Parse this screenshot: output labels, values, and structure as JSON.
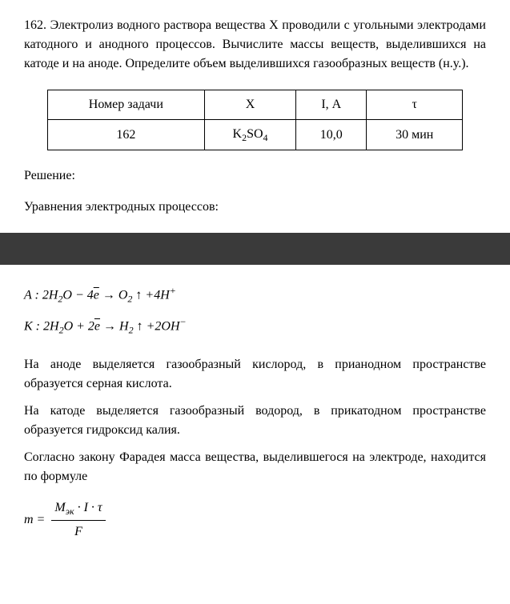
{
  "problem": {
    "number": "162.",
    "text": "Электролиз водного раствора вещества Х проводили с угольными электродами катодного и анодного процессов. Вычислите массы веществ, выделившихся на катоде и на аноде. Определите объем выделившихся газообразных веществ (н.у.)."
  },
  "table": {
    "headers": [
      "Номер задачи",
      "X",
      "I, А",
      "τ"
    ],
    "row": [
      "162",
      "K₂SO₄",
      "10,0",
      "30 мин"
    ]
  },
  "sections": {
    "solution_label": "Решение:",
    "equations_label": "Уравнения электродных процессов:"
  },
  "formulas": {
    "anode": {
      "prefix": "A : 2",
      "h2o": "H",
      "sub1": "2",
      "o": "O",
      "minus": " − 4",
      "e": "e",
      "arrow": " → ",
      "o2": "O",
      "sub2": "2",
      "up": " ↑ +4",
      "h": "H",
      "plus": "+"
    },
    "cathode": {
      "prefix": "K : 2",
      "h2o": "H",
      "sub1": "2",
      "o": "O",
      "plus": " + 2",
      "e": "e",
      "arrow": " → ",
      "h2": "H",
      "sub2": "2",
      "up": " ↑ +2",
      "oh": "OH",
      "minus": "−"
    },
    "mass": {
      "lhs": "m =",
      "numerator_parts": {
        "m": "M",
        "sub": "эк",
        "rest": " · I · τ"
      },
      "denominator": "F"
    }
  },
  "paragraphs": {
    "p1": "На аноде выделяется газообразный кислород, в прианодном пространстве образуется серная кислота.",
    "p2": "На катоде выделяется газообразный водород, в прикатодном пространстве образуется гидроксид калия.",
    "p3": "Согласно закону Фарадея масса вещества, выделившегося на электроде, находится по формуле"
  }
}
